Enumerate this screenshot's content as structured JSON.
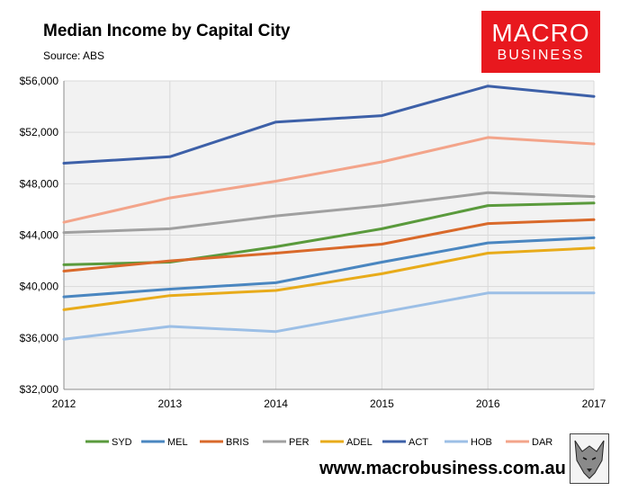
{
  "title": "Median Income by Capital City",
  "subtitle": "Source: ABS",
  "logo": {
    "line1": "MACRO",
    "line2": "BUSINESS",
    "color": "#e8181e"
  },
  "website": "www.macrobusiness.com.au",
  "emblem_icon": "wolf-icon",
  "chart_data": {
    "type": "line",
    "title": "Median Income by Capital City",
    "subtitle": "Source: ABS",
    "x": [
      2012,
      2013,
      2014,
      2015,
      2016,
      2017
    ],
    "ylim": [
      32000,
      56000
    ],
    "yticks": [
      32000,
      36000,
      40000,
      44000,
      48000,
      52000,
      56000
    ],
    "ytick_labels": [
      "$32,000",
      "$36,000",
      "$40,000",
      "$44,000",
      "$48,000",
      "$52,000",
      "$56,000"
    ],
    "xtick_labels": [
      "2012",
      "2013",
      "2014",
      "2015",
      "2016",
      "2017"
    ],
    "grid": true,
    "plot_background": "#f2f2f2",
    "legend_position": "bottom",
    "series": [
      {
        "name": "SYD",
        "color": "#5a9a3c",
        "values": [
          41700,
          41900,
          43100,
          44500,
          46300,
          46500
        ]
      },
      {
        "name": "MEL",
        "color": "#4a86c0",
        "values": [
          39200,
          39800,
          40300,
          41900,
          43400,
          43800
        ]
      },
      {
        "name": "BRIS",
        "color": "#d9692a",
        "values": [
          41200,
          42000,
          42600,
          43300,
          44900,
          45200
        ]
      },
      {
        "name": "PER",
        "color": "#a0a0a0",
        "values": [
          44200,
          44500,
          45500,
          46300,
          47300,
          47000
        ]
      },
      {
        "name": "ADEL",
        "color": "#e8ab1a",
        "values": [
          38200,
          39300,
          39700,
          41000,
          42600,
          43000
        ]
      },
      {
        "name": "ACT",
        "color": "#3d60a8",
        "values": [
          49600,
          50100,
          52800,
          53300,
          55600,
          54800
        ]
      },
      {
        "name": "HOB",
        "color": "#9cbfe6",
        "values": [
          35900,
          36900,
          36500,
          38000,
          39500,
          39500
        ]
      },
      {
        "name": "DAR",
        "color": "#f3a48a",
        "values": [
          45000,
          46900,
          48200,
          49700,
          51600,
          51100
        ]
      }
    ]
  }
}
